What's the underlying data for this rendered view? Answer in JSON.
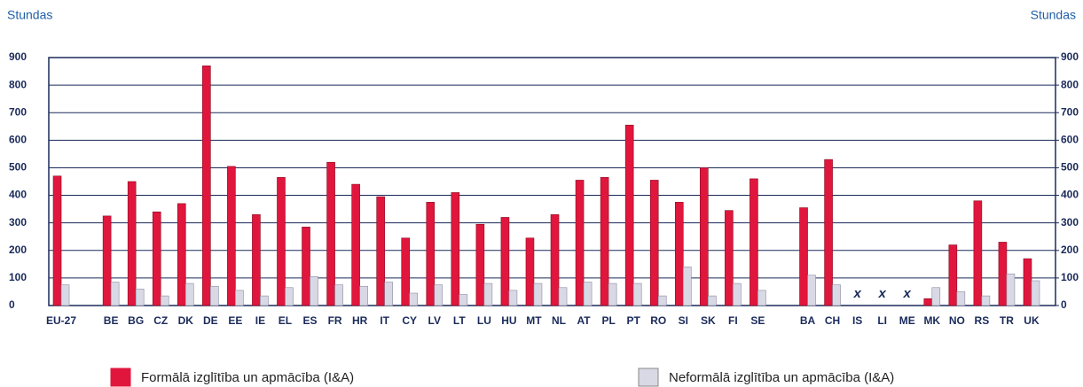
{
  "chart_data": {
    "type": "bar",
    "ylabel": "Stundas",
    "y2label": "Stundas",
    "categories": [
      "EU-27",
      null,
      "BE",
      "BG",
      "CZ",
      "DK",
      "DE",
      "EE",
      "IE",
      "EL",
      "ES",
      "FR",
      "HR",
      "IT",
      "CY",
      "LV",
      "LT",
      "LU",
      "HU",
      "MT",
      "NL",
      "AT",
      "PL",
      "PT",
      "RO",
      "SI",
      "SK",
      "FI",
      "SE",
      null,
      "BA",
      "CH",
      "IS",
      "LI",
      "ME",
      "MK",
      "NO",
      "RS",
      "TR",
      "UK"
    ],
    "series": [
      {
        "name": "Formālā izglītība un apmācība (I&A)",
        "color": "#e0163d",
        "values": [
          470,
          null,
          325,
          450,
          340,
          370,
          870,
          505,
          330,
          465,
          285,
          520,
          440,
          395,
          245,
          375,
          410,
          295,
          320,
          245,
          330,
          455,
          465,
          655,
          455,
          375,
          500,
          345,
          460,
          null,
          355,
          530,
          null,
          null,
          null,
          25,
          220,
          380,
          230,
          170
        ]
      },
      {
        "name": "Neformālā izglītība un apmācība (I&A)",
        "color": "#d9d9e6",
        "values": [
          75,
          null,
          85,
          60,
          35,
          80,
          70,
          55,
          35,
          65,
          105,
          75,
          70,
          85,
          45,
          75,
          40,
          80,
          55,
          80,
          65,
          85,
          80,
          80,
          35,
          140,
          35,
          80,
          55,
          null,
          110,
          75,
          null,
          null,
          null,
          65,
          50,
          35,
          115,
          90
        ]
      }
    ],
    "na_label": "x",
    "ylim": [
      0,
      900
    ],
    "yticks": [
      0,
      100,
      200,
      300,
      400,
      500,
      600,
      700,
      800,
      900
    ],
    "y2lim": [
      0,
      900
    ],
    "y2ticks": [
      0,
      100,
      200,
      300,
      400,
      500,
      600,
      700,
      800,
      900
    ],
    "grid": true,
    "legend": "bottom"
  }
}
